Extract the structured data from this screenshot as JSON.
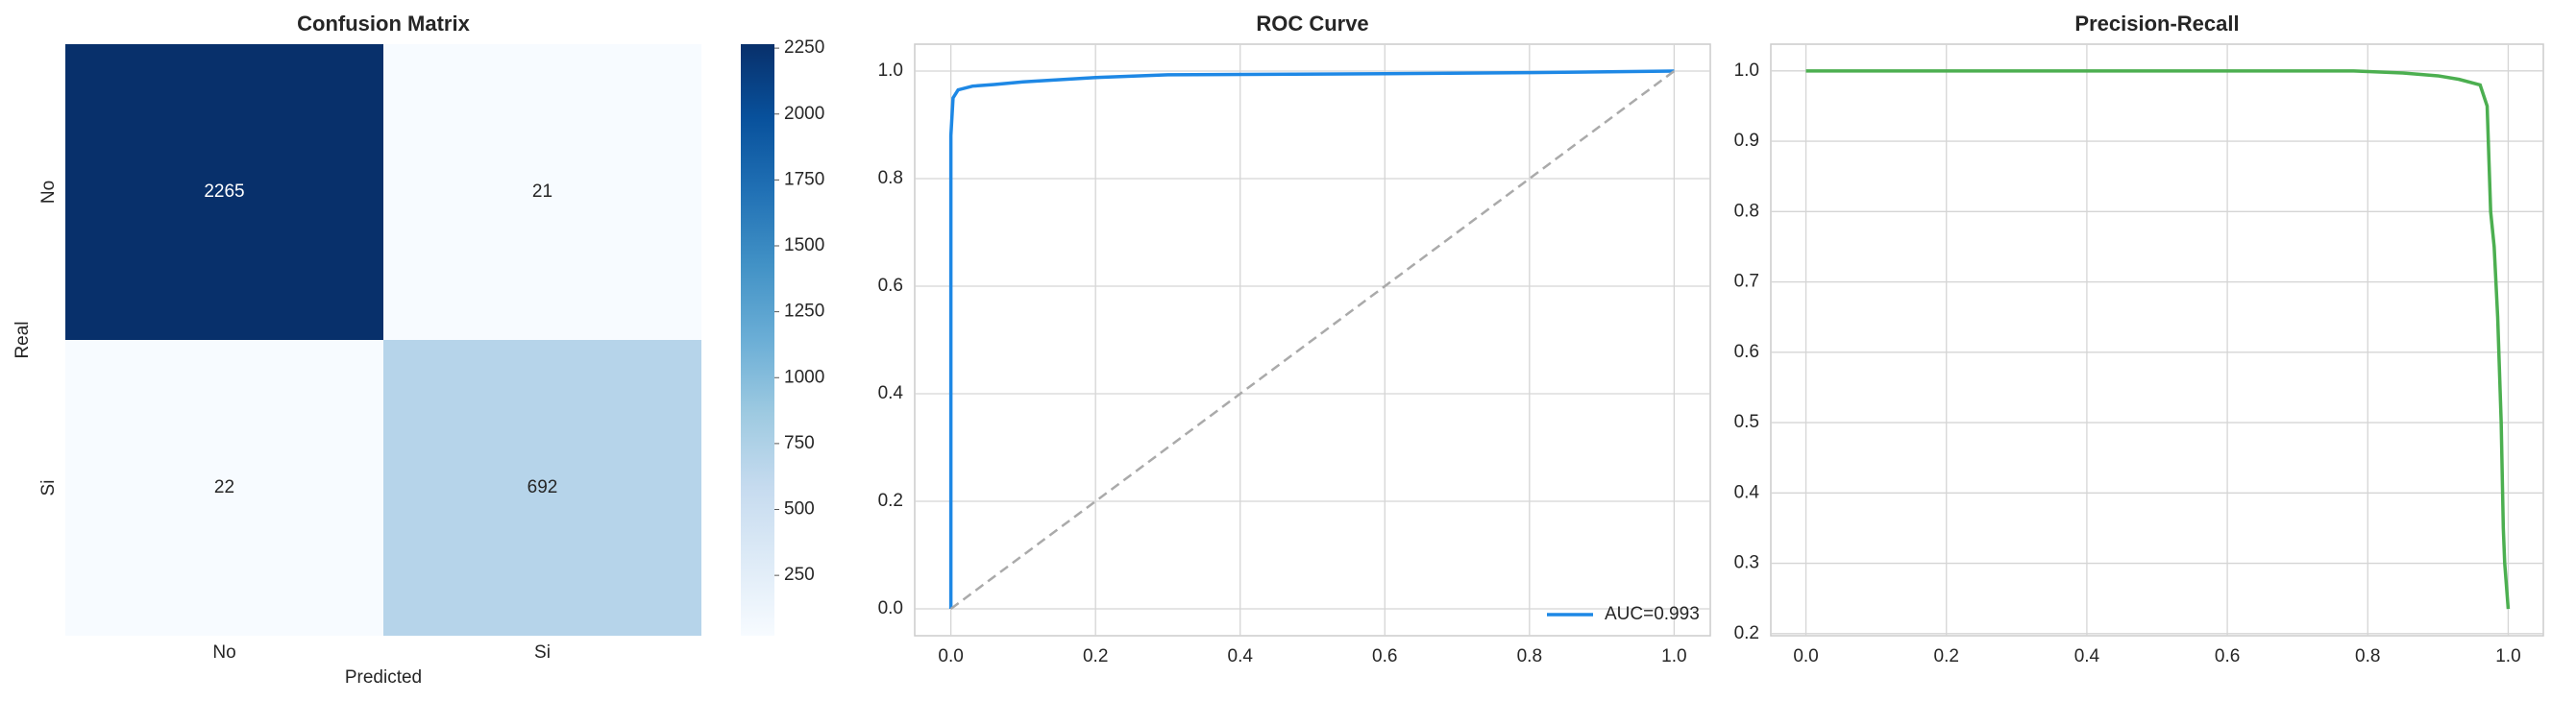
{
  "chart_data": [
    {
      "type": "heatmap",
      "title": "Confusion Matrix",
      "xlabel": "Predicted",
      "ylabel": "Real",
      "x_categories": [
        "No",
        "Si"
      ],
      "y_categories": [
        "No",
        "Si"
      ],
      "values": [
        [
          2265,
          21
        ],
        [
          22,
          692
        ]
      ],
      "colormap": [
        "#f7fbff",
        "#deebf7",
        "#c6dbef",
        "#9ecae1",
        "#6baed6",
        "#4292c6",
        "#2171b5",
        "#08519c",
        "#08306b"
      ],
      "clim": [
        21,
        2265
      ],
      "cticks": [
        250,
        500,
        750,
        1000,
        1250,
        1500,
        1750,
        2000,
        2250
      ]
    },
    {
      "type": "line",
      "title": "ROC Curve",
      "xlim": [
        -0.05,
        1.05
      ],
      "ylim": [
        -0.05,
        1.05
      ],
      "xticks": [
        {
          "value": 0,
          "label": "0.0"
        },
        {
          "value": 0.2,
          "label": "0.2"
        },
        {
          "value": 0.4,
          "label": "0.4"
        },
        {
          "value": 0.6,
          "label": "0.6"
        },
        {
          "value": 0.8,
          "label": "0.8"
        },
        {
          "value": 1,
          "label": "1.0"
        }
      ],
      "yticks": [
        {
          "value": 0,
          "label": "0.0"
        },
        {
          "value": 0.2,
          "label": "0.2"
        },
        {
          "value": 0.4,
          "label": "0.4"
        },
        {
          "value": 0.6,
          "label": "0.6"
        },
        {
          "value": 0.8,
          "label": "0.8"
        },
        {
          "value": 1,
          "label": "1.0"
        }
      ],
      "grid": true,
      "legend": "lower right",
      "series": [
        {
          "name": "AUC=0.993",
          "color": "#1e88e5",
          "x": [
            0,
            0,
            0.003,
            0.01,
            0.03,
            0.06,
            0.1,
            0.2,
            0.3,
            0.6,
            0.8,
            1
          ],
          "values": [
            0,
            0.88,
            0.95,
            0.965,
            0.972,
            0.975,
            0.98,
            0.988,
            0.993,
            0.995,
            0.997,
            1
          ]
        },
        {
          "color": "#aaaaaa",
          "dash": true,
          "x": [
            0,
            1
          ],
          "values": [
            0,
            1
          ]
        }
      ]
    },
    {
      "type": "line",
      "title": "Precision-Recall",
      "xlim": [
        -0.05,
        1.05
      ],
      "ylim": [
        0.197,
        1.038
      ],
      "xticks": [
        {
          "value": 0,
          "label": "0.0"
        },
        {
          "value": 0.2,
          "label": "0.2"
        },
        {
          "value": 0.4,
          "label": "0.4"
        },
        {
          "value": 0.6,
          "label": "0.6"
        },
        {
          "value": 0.8,
          "label": "0.8"
        },
        {
          "value": 1,
          "label": "1.0"
        }
      ],
      "yticks": [
        0.2,
        0.3,
        0.4,
        0.5,
        0.6,
        0.7,
        0.8,
        0.9,
        {
          "value": 1,
          "label": "1.0"
        }
      ],
      "grid": true,
      "series": [
        {
          "color": "#4caf50",
          "x": [
            0,
            0.78,
            0.85,
            0.9,
            0.93,
            0.96,
            0.97,
            0.975,
            0.98,
            0.985,
            0.99,
            0.993,
            0.995,
            1
          ],
          "values": [
            1,
            1,
            0.997,
            0.993,
            0.988,
            0.98,
            0.95,
            0.8,
            0.75,
            0.65,
            0.5,
            0.35,
            0.3,
            0.235
          ]
        }
      ]
    }
  ]
}
